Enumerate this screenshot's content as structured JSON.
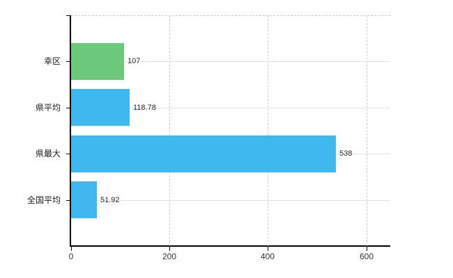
{
  "chart_data": {
    "type": "bar",
    "orientation": "horizontal",
    "title": "",
    "xlabel": "",
    "ylabel": "",
    "categories": [
      "幸区",
      "県平均",
      "県最大",
      "全国平均"
    ],
    "values": [
      107,
      118.78,
      538,
      51.92
    ],
    "value_labels": [
      "107",
      "118.78",
      "538",
      "51.92"
    ],
    "bar_colors": [
      "#6bc97c",
      "#3fb7ef",
      "#3fb7ef",
      "#3fb7ef"
    ],
    "xlim": [
      0,
      650
    ],
    "x_ticks": [
      0,
      200,
      400,
      600
    ],
    "x_tick_labels": [
      "0",
      "200",
      "400",
      "600"
    ],
    "grid": {
      "vertical": "dashed",
      "horizontal": "solid"
    },
    "legend_position": "none",
    "background": "#ffffff"
  },
  "style": {
    "axis_color": "#000000",
    "h_grid_color": "#dbe2db",
    "v_grid_color": "#cccccc",
    "category_text_color": "#1a1a1a",
    "value_text_color": "#2b2b2b",
    "tick_text_color": "#333333"
  }
}
